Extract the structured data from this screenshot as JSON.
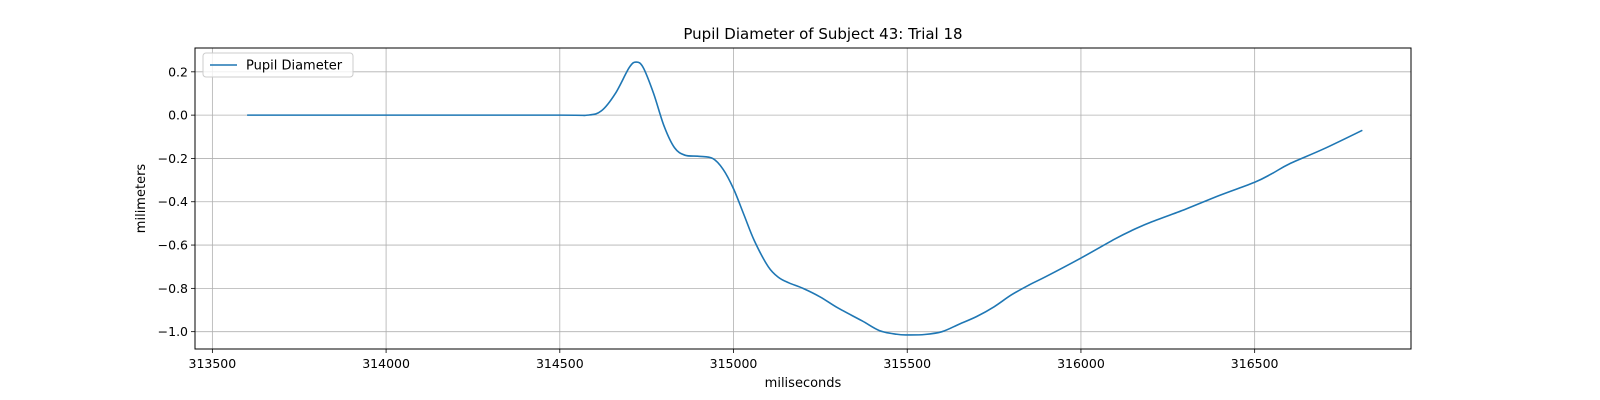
{
  "chart_data": {
    "type": "line",
    "title": "Pupil Diameter of Subject 43: Trial 18",
    "xlabel": "miliseconds",
    "ylabel": "milimeters",
    "xlim": [
      313450,
      316950
    ],
    "ylim": [
      -1.08,
      0.31
    ],
    "xticks": [
      313500,
      314000,
      314500,
      315000,
      315500,
      316000,
      316500
    ],
    "yticks": [
      0.2,
      0.0,
      -0.2,
      -0.4,
      -0.6,
      -0.8,
      -1.0
    ],
    "xtick_labels": [
      "313500",
      "314000",
      "314500",
      "315000",
      "315500",
      "316000",
      "316500"
    ],
    "ytick_labels": [
      "0.2",
      "0.0",
      "−0.2",
      "−0.4",
      "−0.6",
      "−0.8",
      "−1.0"
    ],
    "grid": true,
    "legend_position": "top-left",
    "series": [
      {
        "name": "Pupil Diameter",
        "color": "#1f77b4",
        "x": [
          313600,
          314000,
          314500,
          314580,
          314620,
          314660,
          314700,
          314720,
          314740,
          314770,
          314800,
          314830,
          314860,
          314900,
          314940,
          314970,
          315000,
          315030,
          315060,
          315100,
          315130,
          315160,
          315200,
          315250,
          315300,
          315370,
          315420,
          315470,
          315500,
          315550,
          315600,
          315650,
          315700,
          315750,
          315800,
          315850,
          315900,
          316000,
          316100,
          316150,
          316200,
          316300,
          316400,
          316500,
          316550,
          316600,
          316700,
          316810
        ],
        "y": [
          0.0,
          0.0,
          0.0,
          0.0,
          0.02,
          0.1,
          0.22,
          0.245,
          0.22,
          0.1,
          -0.05,
          -0.15,
          -0.185,
          -0.19,
          -0.2,
          -0.25,
          -0.34,
          -0.46,
          -0.58,
          -0.7,
          -0.75,
          -0.775,
          -0.8,
          -0.84,
          -0.89,
          -0.95,
          -0.995,
          -1.012,
          -1.015,
          -1.013,
          -1.0,
          -0.965,
          -0.93,
          -0.885,
          -0.83,
          -0.785,
          -0.745,
          -0.66,
          -0.57,
          -0.53,
          -0.495,
          -0.435,
          -0.37,
          -0.31,
          -0.27,
          -0.225,
          -0.155,
          -0.07
        ]
      }
    ]
  }
}
